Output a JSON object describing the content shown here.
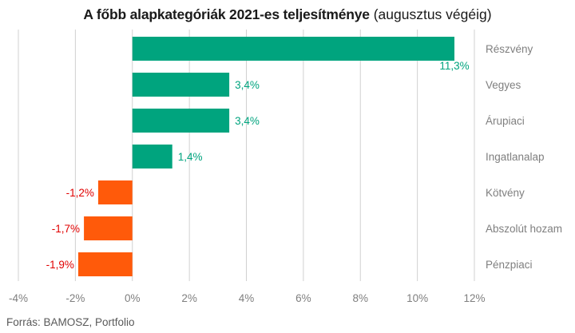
{
  "title_bold": "A főbb alapkategóriák 2021-es teljesítménye",
  "title_suffix": "(augusztus végéig)",
  "source": "Forrás: BAMOSZ, Portfolio",
  "colors": {
    "positive": "#00A47E",
    "negative": "#FF5A0A",
    "negative_label": "#E00000",
    "grid": "#D0D0D0",
    "axis_text": "#7F7F7F"
  },
  "chart_data": {
    "type": "bar",
    "orientation": "horizontal",
    "categories": [
      "Részvény",
      "Vegyes",
      "Árupiaci",
      "Ingatlanalap",
      "Kötvény",
      "Abszolút hozam",
      "Pénzpiaci"
    ],
    "values": [
      11.3,
      3.4,
      3.4,
      1.4,
      -1.2,
      -1.7,
      -1.9
    ],
    "data_labels": [
      "11,3%",
      "3,4%",
      "3,4%",
      "1,4%",
      "-1,2%",
      "-1,7%",
      "-1,9%"
    ],
    "xlim": [
      -4,
      12
    ],
    "ticks": [
      -4,
      -2,
      0,
      2,
      4,
      6,
      8,
      10,
      12
    ],
    "tick_labels": [
      "-4%",
      "-2%",
      "0%",
      "2%",
      "4%",
      "6%",
      "8%",
      "10%",
      "12%"
    ],
    "grid": true,
    "category_labels_position": "right"
  }
}
